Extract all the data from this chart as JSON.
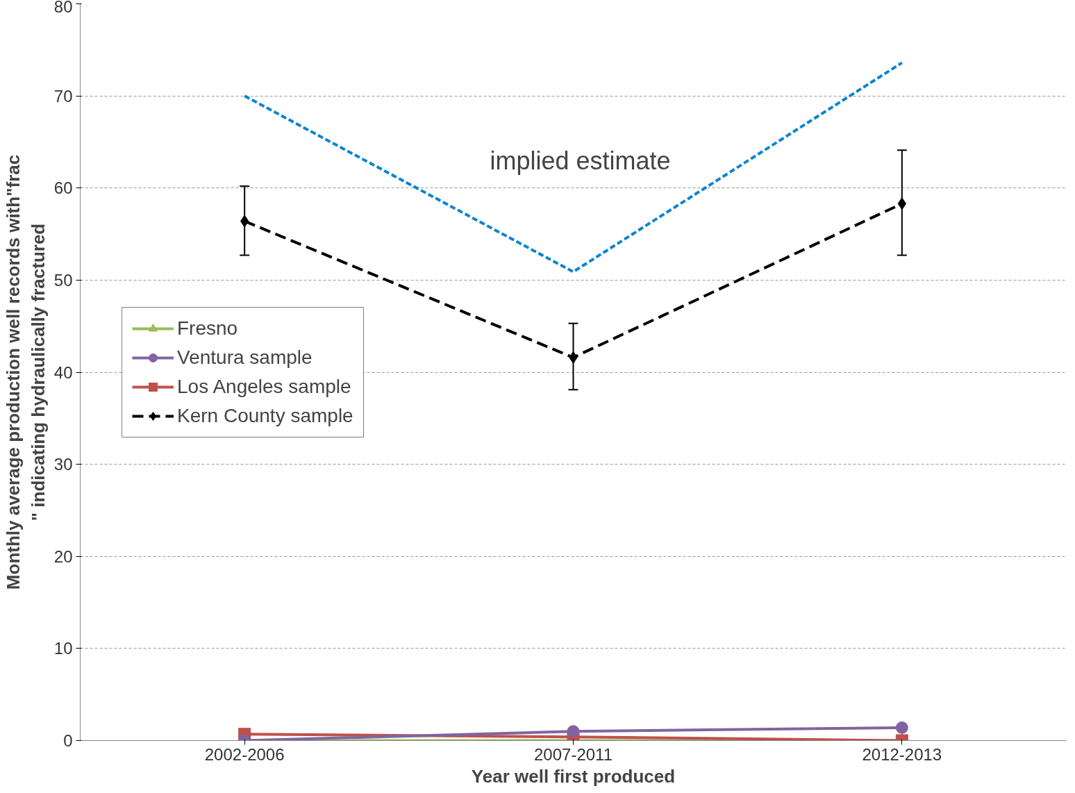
{
  "chart_data": {
    "type": "line",
    "xlabel": "Year well first produced",
    "ylabel": "Monthly average production well records with\"frac\n\" indicating hydraulically fractured",
    "categories": [
      "2002-2006",
      "2007-2011",
      "2012-2013"
    ],
    "ylim": [
      0,
      80
    ],
    "yticks": [
      0,
      10,
      20,
      30,
      40,
      50,
      60,
      70,
      80
    ],
    "grid": "y",
    "legend": "left",
    "series": [
      {
        "name": "Fresno",
        "color": "#9bbb59",
        "values": [
          0,
          0,
          0
        ],
        "marker": "triangle",
        "line_style": "solid"
      },
      {
        "name": "Ventura sample",
        "color": "#8064a2",
        "values": [
          0,
          1.0,
          1.4
        ],
        "marker": "circle",
        "line_style": "solid"
      },
      {
        "name": "Los Angeles sample",
        "color": "#c0504d",
        "values": [
          0.7,
          0.4,
          0
        ],
        "marker": "square",
        "line_style": "solid"
      },
      {
        "name": "Kern County sample",
        "color": "#000000",
        "values": [
          56.4,
          41.6,
          58.3
        ],
        "marker": "diamond",
        "line_style": "dashed",
        "errors": [
          [
            52.7,
            60.2
          ],
          [
            38.1,
            45.3
          ],
          [
            52.7,
            64.1
          ]
        ]
      },
      {
        "color": "#0a84d0",
        "values": [
          70.0,
          50.9,
          73.6
        ],
        "marker": "none",
        "line_style": "dotted"
      }
    ],
    "annotations": [
      "implied estimate"
    ]
  }
}
